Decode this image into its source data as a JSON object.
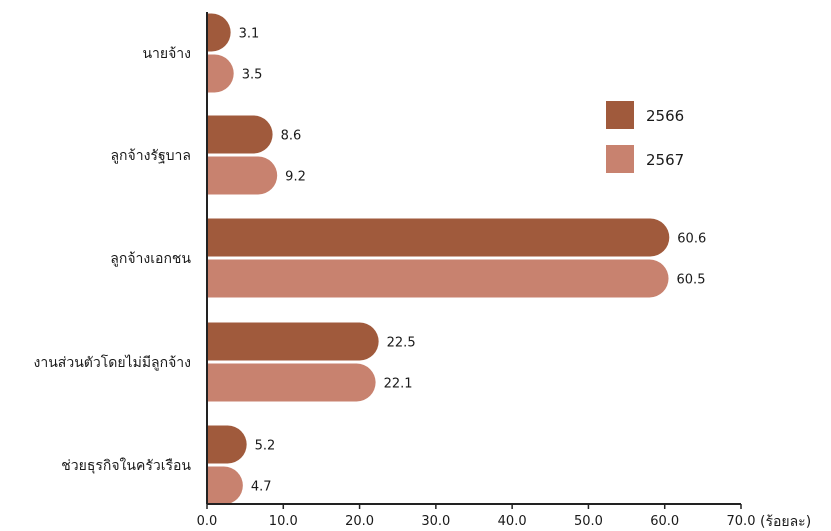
{
  "chart_data": {
    "type": "bar",
    "orientation": "horizontal",
    "categories": [
      "นายจ้าง",
      "ลูกจ้างรัฐบาล",
      "ลูกจ้างเอกชน",
      "งานส่วนตัวโดยไม่มีลูกจ้าง",
      "ช่วยธุรกิจในครัวเรือน"
    ],
    "series": [
      {
        "name": "2566",
        "color": "#a05a3c",
        "values": [
          3.1,
          8.6,
          60.6,
          22.5,
          5.2
        ],
        "labels": [
          "3.1",
          "8.6",
          "60.6",
          "22.5",
          "5.2"
        ]
      },
      {
        "name": "2567",
        "color": "#c8826f",
        "values": [
          3.5,
          9.2,
          60.5,
          22.1,
          4.7
        ],
        "labels": [
          "3.5",
          "9.2",
          "60.5",
          "22.1",
          "4.7"
        ]
      }
    ],
    "xlim": [
      0,
      70
    ],
    "xticks": [
      "0.0",
      "10.0",
      "20.0",
      "30.0",
      "40.0",
      "50.0",
      "60.0",
      "70.0"
    ],
    "xlabel": "(ร้อยละ)",
    "legend": "right",
    "grid": false
  }
}
